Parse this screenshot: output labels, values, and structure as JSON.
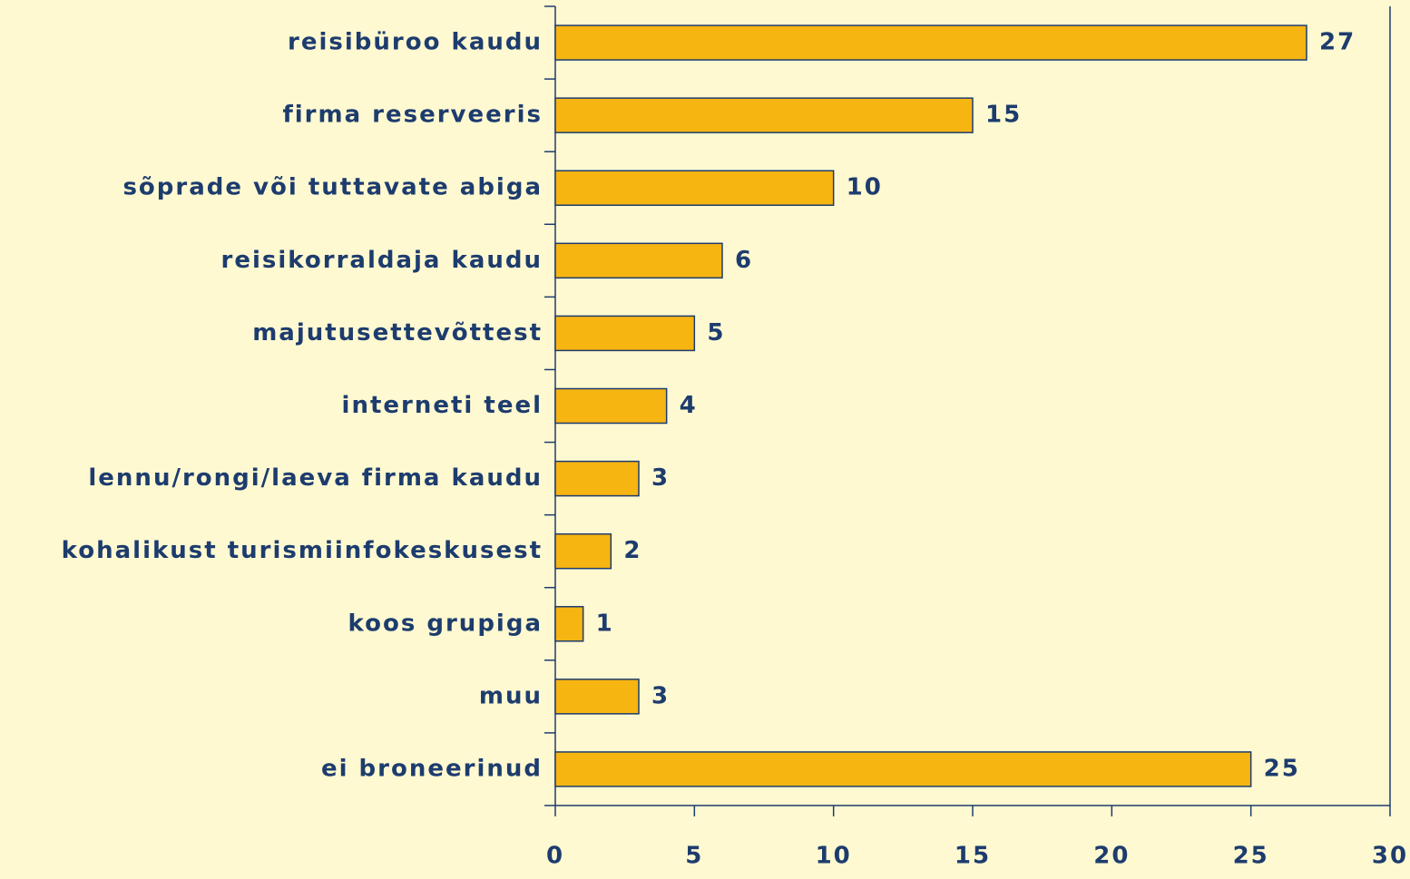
{
  "chart_data": {
    "type": "barh",
    "categories": [
      "reisibüroo kaudu",
      "firma reserveeris",
      "sõprade või tuttavate abiga",
      "reisikorraldaja kaudu",
      "majutusettevõttest",
      "interneti teel",
      "lennu/rongi/laeva firma kaudu",
      "kohalikust turismiinfokeskusest",
      "koos grupiga",
      "muu",
      "ei broneerinud"
    ],
    "values": [
      27,
      15,
      10,
      6,
      5,
      4,
      3,
      2,
      1,
      3,
      25
    ],
    "color": "#f7b512",
    "xlim": [
      0,
      30
    ],
    "xticks": [
      0,
      5,
      10,
      15,
      20,
      25,
      30
    ]
  }
}
